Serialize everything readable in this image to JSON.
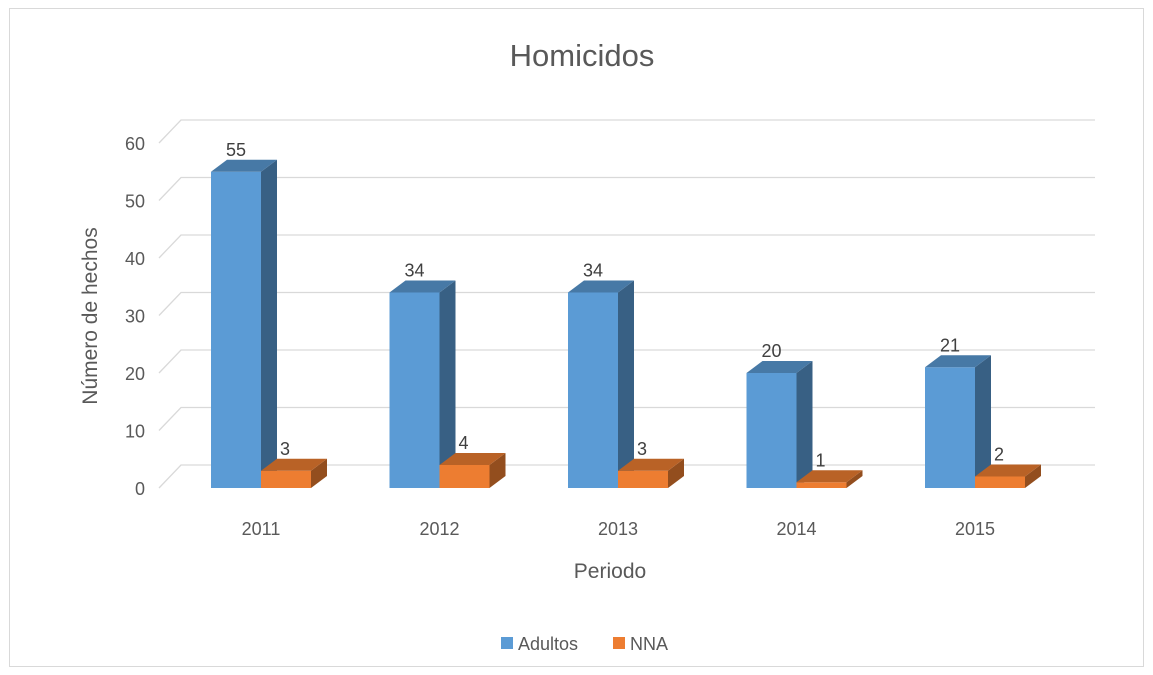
{
  "chart_data": {
    "type": "bar",
    "title": "Homicidos",
    "xlabel": "Periodo",
    "ylabel": "Número de hechos",
    "categories": [
      "2011",
      "2012",
      "2013",
      "2014",
      "2015"
    ],
    "series": [
      {
        "name": "Adultos",
        "values": [
          55,
          34,
          34,
          20,
          21
        ],
        "color": "#5b9bd5"
      },
      {
        "name": "NNA",
        "values": [
          3,
          4,
          3,
          1,
          2
        ],
        "color": "#ed7d31"
      }
    ],
    "ylim": [
      0,
      60
    ],
    "yticks": [
      0,
      10,
      20,
      30,
      40,
      50,
      60
    ],
    "grid": true,
    "legend": "bottom",
    "style": "3d-column"
  }
}
